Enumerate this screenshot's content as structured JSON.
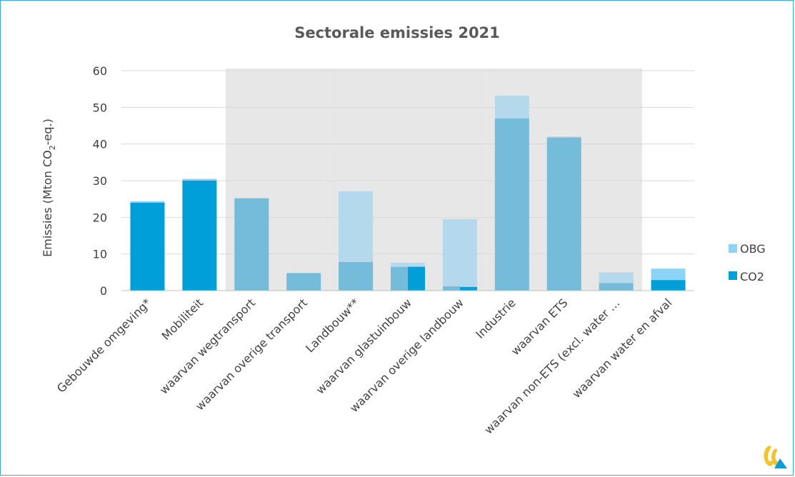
{
  "chart_data": {
    "type": "bar",
    "stacked": true,
    "title": "Sectorale emissies 2021",
    "ylabel_prefix": "Emissies (Mton CO",
    "ylabel_sub": "2",
    "ylabel_suffix": "-eq.)",
    "ylim": [
      0,
      60
    ],
    "yticks": [
      0,
      10,
      20,
      30,
      40,
      50,
      60
    ],
    "grid": true,
    "legend_position": "right",
    "categories": [
      "Gebouwde omgeving*",
      "Mobiliteit",
      "waarvan wegtransport",
      "waarvan overige transport",
      "Landbouw**",
      "waarvan glastuinbouw",
      "waarvan overige landbouw",
      "Industrie",
      "waarvan ETS",
      "waarvan non-ETS (excl. water …",
      "waarvan water en afval"
    ],
    "series": [
      {
        "name": "CO2",
        "color": "#009fda",
        "values": [
          24.0,
          30.0,
          25.2,
          4.8,
          7.8,
          6.5,
          1.2,
          47.0,
          41.8,
          2.1,
          2.9
        ]
      },
      {
        "name": "OBG",
        "color": "#8dd3f7",
        "values": [
          0.4,
          0.5,
          0.0,
          0.0,
          19.3,
          1.1,
          18.3,
          6.2,
          0.2,
          2.9,
          3.1
        ]
      }
    ],
    "sub_bars": [
      {
        "category_index": 5,
        "co2": 6.5,
        "obg": 0.0,
        "note": "right half of split bar"
      },
      {
        "category_index": 6,
        "co2": 1.0,
        "obg": 18.5,
        "note": "right half of split bar"
      }
    ],
    "shaded_groups": [
      {
        "from": 2,
        "to": 3
      },
      {
        "from": 4,
        "to": 6
      },
      {
        "from": 7,
        "to": 9
      }
    ]
  },
  "legend": [
    {
      "label": "OBG",
      "color": "#8dd3f7"
    },
    {
      "label": "CO2",
      "color": "#009fda"
    }
  ],
  "logo_icon": "pbl-logo-icon"
}
